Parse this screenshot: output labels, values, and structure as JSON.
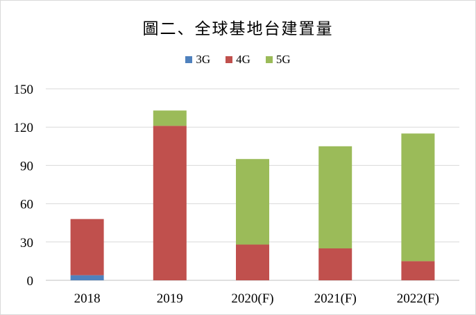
{
  "chart_data": {
    "type": "bar",
    "stacked": true,
    "title": "圖二、全球基地台建置量",
    "categories": [
      "2018",
      "2019",
      "2020(F)",
      "2021(F)",
      "2022(F)"
    ],
    "series": [
      {
        "name": "3G",
        "color": "#4f81bd",
        "values": [
          4,
          0,
          0,
          0,
          0
        ]
      },
      {
        "name": "4G",
        "color": "#c0504d",
        "values": [
          44,
          121,
          28,
          25,
          15
        ]
      },
      {
        "name": "5G",
        "color": "#9bbb59",
        "values": [
          0,
          12,
          67,
          80,
          100
        ]
      }
    ],
    "ylim": [
      0,
      150
    ],
    "yticks": [
      0,
      30,
      60,
      90,
      120,
      150
    ],
    "grid": true,
    "legend_position": "top"
  }
}
